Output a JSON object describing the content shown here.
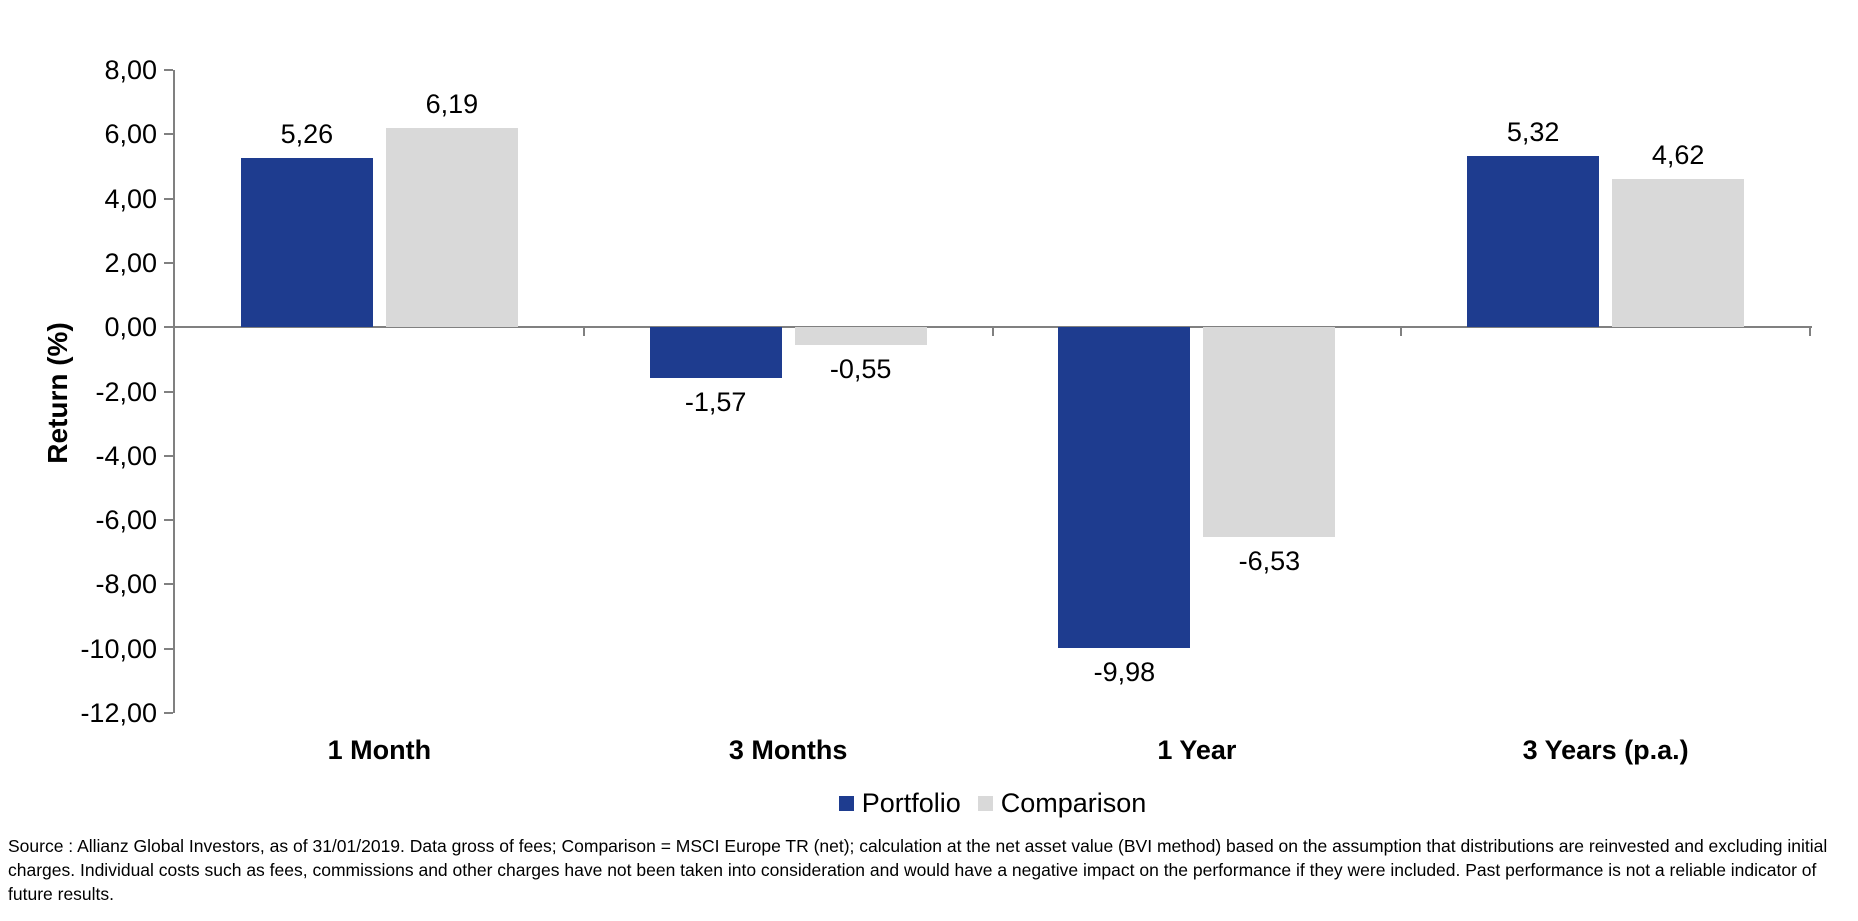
{
  "chart_data": {
    "type": "bar",
    "title": "",
    "xlabel": "",
    "ylabel": "Return (%)",
    "categories": [
      "1 Month",
      "3 Months",
      "1 Year",
      "3 Years (p.a.)"
    ],
    "series": [
      {
        "name": "Portfolio",
        "color": "#1e3c8f",
        "values": [
          5.26,
          -1.57,
          -9.98,
          5.32
        ],
        "labels": [
          "5,26",
          "-1,57",
          "-9,98",
          "5,32"
        ]
      },
      {
        "name": "Comparison",
        "color": "#d9d9d9",
        "values": [
          6.19,
          -0.55,
          -6.53,
          4.62
        ],
        "labels": [
          "6,19",
          "-0,55",
          "-6,53",
          "4,62"
        ]
      }
    ],
    "ylim": [
      -12,
      8
    ],
    "ytick_step": 2,
    "ytick_labels": [
      "8,00",
      "6,00",
      "4,00",
      "2,00",
      "0,00",
      "-2,00",
      "-4,00",
      "-6,00",
      "-8,00",
      "-10,00",
      "-12,00"
    ],
    "grid": false,
    "legend_position": "bottom-center",
    "decimal_separator": ","
  },
  "colors": {
    "portfolio": "#1e3c8f",
    "comparison": "#d9d9d9",
    "axis": "#808080",
    "text": "#000000",
    "background": "#ffffff"
  },
  "footnote": "Source : Allianz Global Investors, as of 31/01/2019. Data gross of fees; Comparison = MSCI Europe TR (net); calculation at the net asset value (BVI method) based on the assumption that distributions are reinvested and excluding initial charges. Individual costs such as fees, commissions and other charges have not been taken into consideration and would have a negative impact on the performance if they were included. Past performance is not a reliable indicator of future results."
}
